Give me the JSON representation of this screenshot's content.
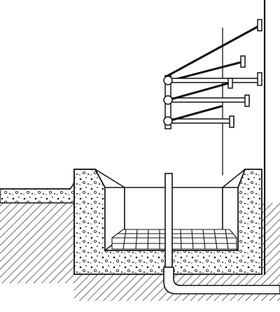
{
  "figure": {
    "subject": "",
    "colors": {
      "ink": "#111111",
      "paper": "#ffffff"
    }
  }
}
